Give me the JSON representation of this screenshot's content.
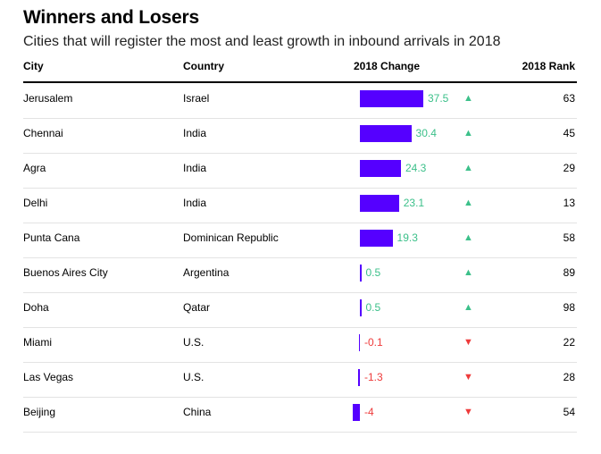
{
  "title": "Winners and Losers",
  "subtitle": "Cities that will register the most and least growth in inbound arrivals in 2018",
  "headers": {
    "city": "City",
    "country": "Country",
    "change": "2018 Change",
    "rank": "2018 Rank"
  },
  "colors": {
    "bar": "#5500ff",
    "up": "#3cc08a",
    "down": "#ee3b3b"
  },
  "chart_data": {
    "type": "table",
    "title": "Winners and Losers",
    "subtitle": "Cities that will register the most and least growth in inbound arrivals in 2018",
    "columns": [
      "City",
      "Country",
      "2018 Change",
      "2018 Rank"
    ],
    "rows": [
      {
        "city": "Jerusalem",
        "country": "Israel",
        "change": 37.5,
        "change_label": "37.5",
        "direction": "up",
        "arrow": "▲",
        "rank": "63"
      },
      {
        "city": "Chennai",
        "country": "India",
        "change": 30.4,
        "change_label": "30.4",
        "direction": "up",
        "arrow": "▲",
        "rank": "45"
      },
      {
        "city": "Agra",
        "country": "India",
        "change": 24.3,
        "change_label": "24.3",
        "direction": "up",
        "arrow": "▲",
        "rank": "29"
      },
      {
        "city": "Delhi",
        "country": "India",
        "change": 23.1,
        "change_label": "23.1",
        "direction": "up",
        "arrow": "▲",
        "rank": "13"
      },
      {
        "city": "Punta Cana",
        "country": "Dominican Republic",
        "change": 19.3,
        "change_label": "19.3",
        "direction": "up",
        "arrow": "▲",
        "rank": "58"
      },
      {
        "city": "Buenos Aires City",
        "country": "Argentina",
        "change": 0.5,
        "change_label": "0.5",
        "direction": "up",
        "arrow": "▲",
        "rank": "89"
      },
      {
        "city": "Doha",
        "country": "Qatar",
        "change": 0.5,
        "change_label": "0.5",
        "direction": "up",
        "arrow": "▲",
        "rank": "98"
      },
      {
        "city": "Miami",
        "country": "U.S.",
        "change": -0.1,
        "change_label": "-0.1",
        "direction": "down",
        "arrow": "▼",
        "rank": "22"
      },
      {
        "city": "Las Vegas",
        "country": "U.S.",
        "change": -1.3,
        "change_label": "-1.3",
        "direction": "down",
        "arrow": "▼",
        "rank": "28"
      },
      {
        "city": "Beijing",
        "country": "China",
        "change": -4,
        "change_label": "-4",
        "direction": "down",
        "arrow": "▼",
        "rank": "54"
      }
    ],
    "xlim": [
      -4,
      37.5
    ]
  }
}
